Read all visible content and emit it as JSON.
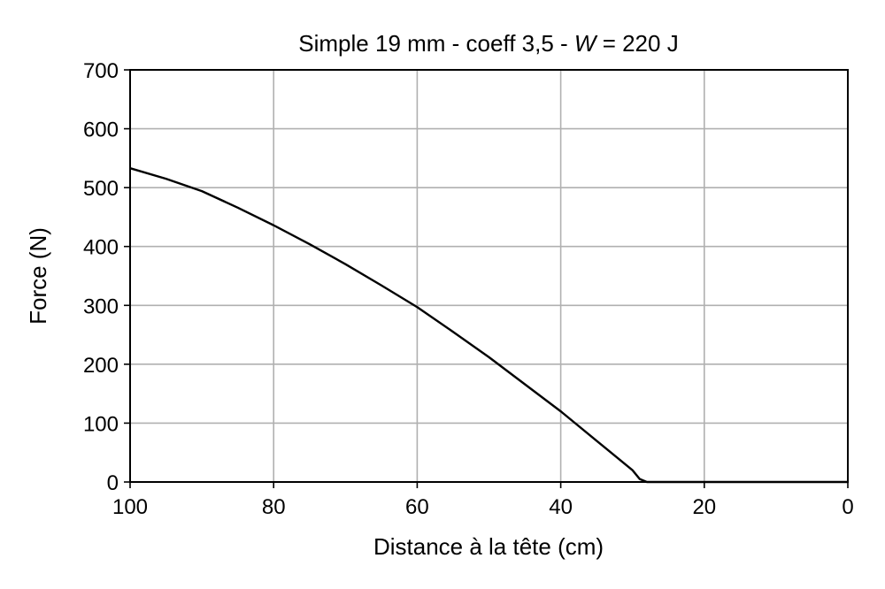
{
  "chart_data": {
    "type": "line",
    "title_prefix": "Simple 19 mm - coeff 3,5 - ",
    "title_var": "W",
    "title_suffix": " = 220 J",
    "xlabel": "Distance à la tête (cm)",
    "ylabel": "Force (N)",
    "xlim": [
      100,
      0
    ],
    "ylim": [
      0,
      700
    ],
    "x_ticks": [
      100,
      80,
      60,
      40,
      20,
      0
    ],
    "y_ticks": [
      0,
      100,
      200,
      300,
      400,
      500,
      600,
      700
    ],
    "grid": true,
    "series": [
      {
        "color": "#000000",
        "x": [
          100,
          95,
          90,
          85,
          80,
          75,
          70,
          65,
          60,
          55,
          50,
          45,
          40,
          35,
          30,
          29,
          28,
          25,
          20,
          15,
          10,
          5,
          0
        ],
        "y": [
          533,
          515,
          494,
          466,
          436,
          404,
          370,
          334,
          297,
          255,
          212,
          166,
          120,
          70,
          20,
          5,
          0,
          0,
          0,
          0,
          0,
          0,
          0
        ]
      }
    ]
  }
}
